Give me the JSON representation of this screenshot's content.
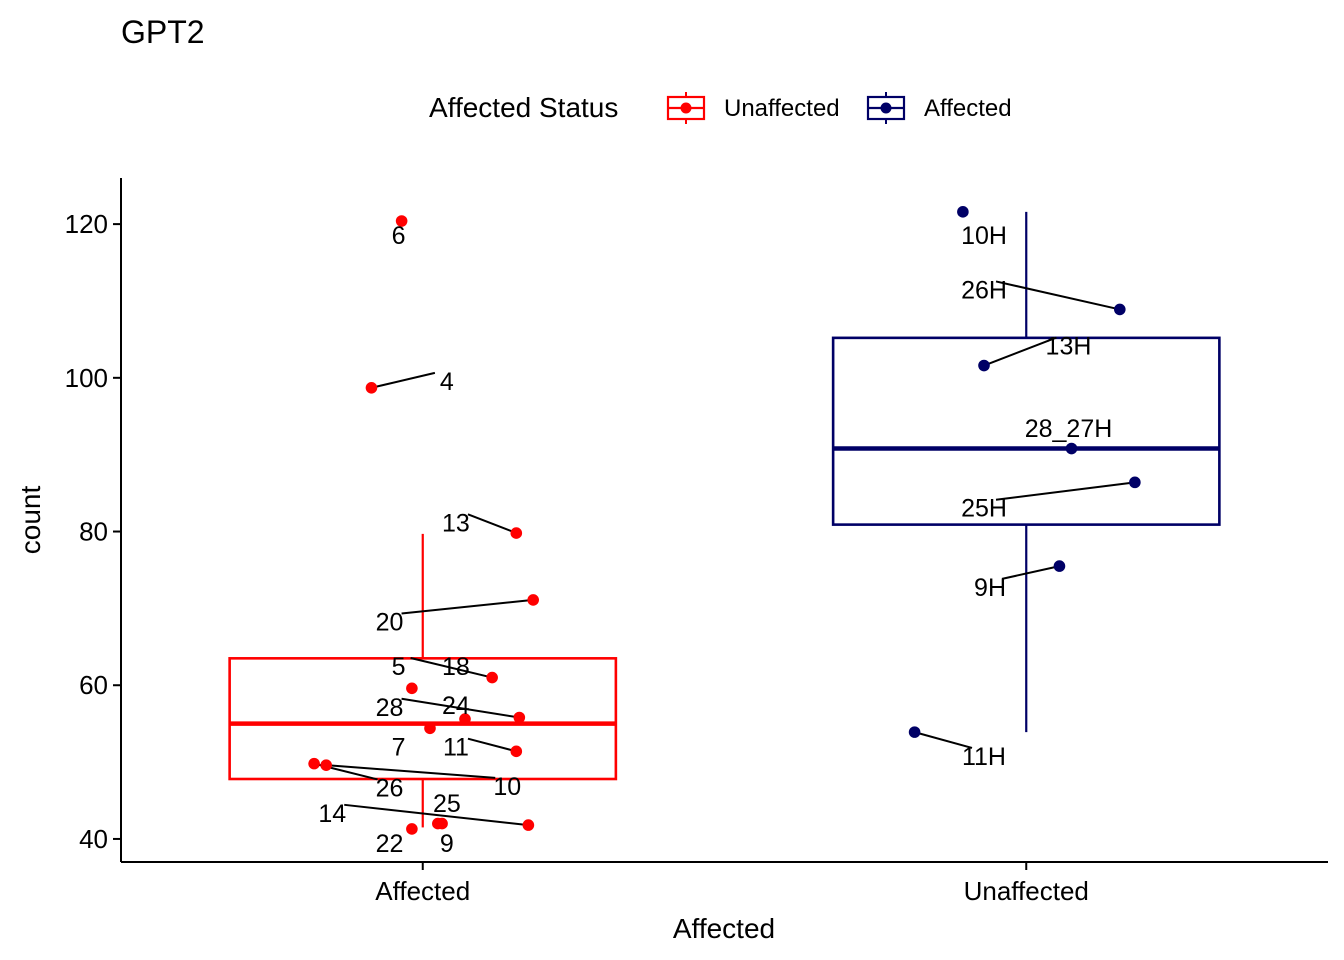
{
  "chart_data": {
    "type": "box",
    "title": "GPT2",
    "xlabel": "Affected",
    "ylabel": "count",
    "categories": [
      "Affected",
      "Unaffected"
    ],
    "ylim": [
      37,
      126
    ],
    "yticks": [
      "40",
      "60",
      "80",
      "100",
      "120"
    ],
    "grid": false,
    "legend": {
      "title": "Affected Status",
      "position": "top",
      "entries": [
        {
          "label": "Unaffected",
          "color": "#ff0000"
        },
        {
          "label": "Affected",
          "color": "#000066"
        }
      ]
    },
    "series": [
      {
        "name": "Unaffected",
        "color": "#ff0000",
        "category": "Affected",
        "box": {
          "min": 41.5,
          "q1": 47.8,
          "median": 55.0,
          "q3": 63.5,
          "max": 79.7
        },
        "points": [
          {
            "label": "6",
            "x_offset": -0.035,
            "y": 120.4,
            "lx_offset": -0.04,
            "ly": 118.6
          },
          {
            "label": "4",
            "x_offset": -0.085,
            "y": 98.7,
            "lx_offset": 0.04,
            "ly": 99.6
          },
          {
            "label": "13",
            "x_offset": 0.155,
            "y": 79.8,
            "lx_offset": 0.055,
            "ly": 81.2
          },
          {
            "label": "20",
            "x_offset": 0.183,
            "y": 71.1,
            "lx_offset": -0.055,
            "ly": 68.3
          },
          {
            "label": "5",
            "x_offset": 0.115,
            "y": 61.0,
            "lx_offset": -0.04,
            "ly": 62.5
          },
          {
            "label": "18",
            "x_offset": -0.018,
            "y": 59.6,
            "lx_offset": 0.055,
            "ly": 62.5
          },
          {
            "label": "28",
            "x_offset": 0.16,
            "y": 55.8,
            "lx_offset": -0.055,
            "ly": 57.2
          },
          {
            "label": "24",
            "x_offset": 0.07,
            "y": 55.6,
            "lx_offset": 0.055,
            "ly": 57.4
          },
          {
            "label": "7",
            "x_offset": 0.012,
            "y": 54.4,
            "lx_offset": -0.04,
            "ly": 52.0
          },
          {
            "label": "11",
            "x_offset": 0.155,
            "y": 51.4,
            "lx_offset": 0.055,
            "ly": 52.0
          },
          {
            "label": "26",
            "x_offset": -0.18,
            "y": 49.8,
            "lx_offset": -0.055,
            "ly": 46.7
          },
          {
            "label": "10",
            "x_offset": -0.16,
            "y": 49.6,
            "lx_offset": 0.14,
            "ly": 46.9
          },
          {
            "label": "25",
            "x_offset": 0.025,
            "y": 42.0,
            "lx_offset": 0.04,
            "ly": 44.7
          },
          {
            "label": "14",
            "x_offset": 0.175,
            "y": 41.8,
            "lx_offset": -0.15,
            "ly": 43.4
          },
          {
            "label": "22",
            "x_offset": -0.018,
            "y": 41.3,
            "lx_offset": -0.055,
            "ly": 39.5
          },
          {
            "label": "9",
            "x_offset": 0.032,
            "y": 42.0,
            "lx_offset": 0.04,
            "ly": 39.5
          }
        ]
      },
      {
        "name": "Affected",
        "color": "#000066",
        "category": "Unaffected",
        "box": {
          "min": 53.9,
          "q1": 80.9,
          "median": 90.8,
          "q3": 105.2,
          "max": 121.6
        },
        "points": [
          {
            "label": "10H",
            "x_offset": -0.105,
            "y": 121.6,
            "lx_offset": -0.07,
            "ly": 118.6
          },
          {
            "label": "26H",
            "x_offset": 0.155,
            "y": 108.9,
            "lx_offset": -0.07,
            "ly": 111.5
          },
          {
            "label": "13H",
            "x_offset": -0.07,
            "y": 101.6,
            "lx_offset": 0.07,
            "ly": 104.2
          },
          {
            "label": "28_27H",
            "x_offset": 0.075,
            "y": 90.8,
            "lx_offset": 0.07,
            "ly": 93.5
          },
          {
            "label": "25H",
            "x_offset": 0.18,
            "y": 86.4,
            "lx_offset": -0.07,
            "ly": 83.1
          },
          {
            "label": "9H",
            "x_offset": 0.055,
            "y": 75.5,
            "lx_offset": -0.06,
            "ly": 72.8
          },
          {
            "label": "11H",
            "x_offset": -0.185,
            "y": 53.9,
            "lx_offset": -0.07,
            "ly": 50.8
          }
        ]
      }
    ]
  }
}
